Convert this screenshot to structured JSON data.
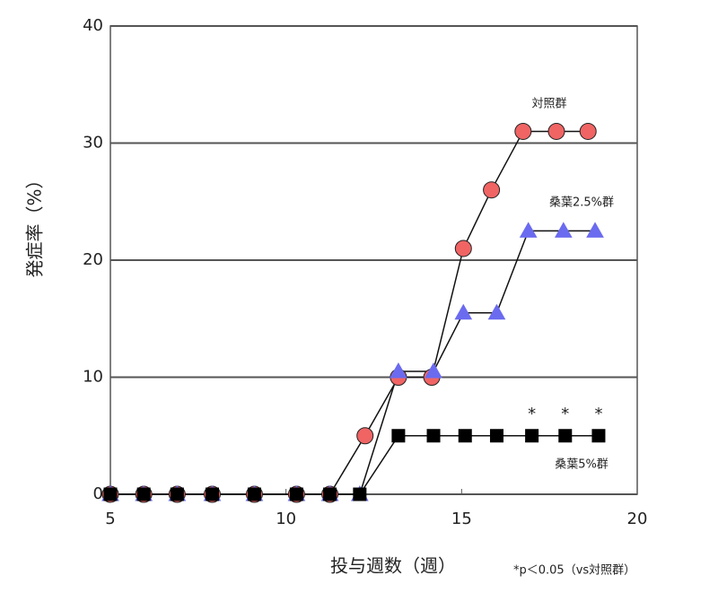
{
  "chart_data": {
    "type": "line",
    "xlabel": "投与週数（週）",
    "ylabel": "発症率（%）",
    "xlim": [
      5,
      20
    ],
    "xticks": [
      5,
      10,
      15,
      20
    ],
    "ylim": [
      0,
      40
    ],
    "yticks": [
      0,
      10,
      20,
      30,
      40
    ],
    "grid": true,
    "series": [
      {
        "name": "対照群",
        "color": "#f06464",
        "marker": "circle",
        "x": [
          5,
          5.95,
          6.9,
          7.9,
          9.1,
          10.3,
          11.25,
          12.25,
          13.2,
          14.15,
          15.05,
          15.85,
          16.75,
          17.7,
          18.6
        ],
        "values": [
          0,
          0,
          0,
          0,
          0,
          0,
          0,
          5,
          10,
          10,
          21,
          26,
          31,
          31,
          31
        ]
      },
      {
        "name": "桑葉2.5%群",
        "color": "#6b6bf0",
        "marker": "triangle",
        "x": [
          5,
          5.95,
          6.9,
          7.9,
          9.1,
          10.3,
          11.25,
          12.1,
          13.2,
          14.2,
          15.05,
          16,
          16.9,
          17.9,
          18.8
        ],
        "values": [
          0,
          0,
          0,
          0,
          0,
          0,
          0,
          0,
          10.5,
          10.5,
          15.5,
          15.5,
          22.5,
          22.5,
          22.5
        ]
      },
      {
        "name": "桑葉5%群",
        "color": "#000000",
        "marker": "square",
        "x": [
          5,
          5.95,
          6.9,
          7.9,
          9.1,
          10.3,
          11.25,
          12.1,
          13.2,
          14.2,
          15.1,
          16,
          17,
          17.95,
          18.9
        ],
        "values": [
          0,
          0,
          0,
          0,
          0,
          0,
          0,
          0,
          5,
          5,
          5,
          5,
          5,
          5,
          5
        ]
      }
    ],
    "annotations": [
      "*",
      "*",
      "*"
    ],
    "footnote": "*p＜0.05（vs対照群）"
  }
}
